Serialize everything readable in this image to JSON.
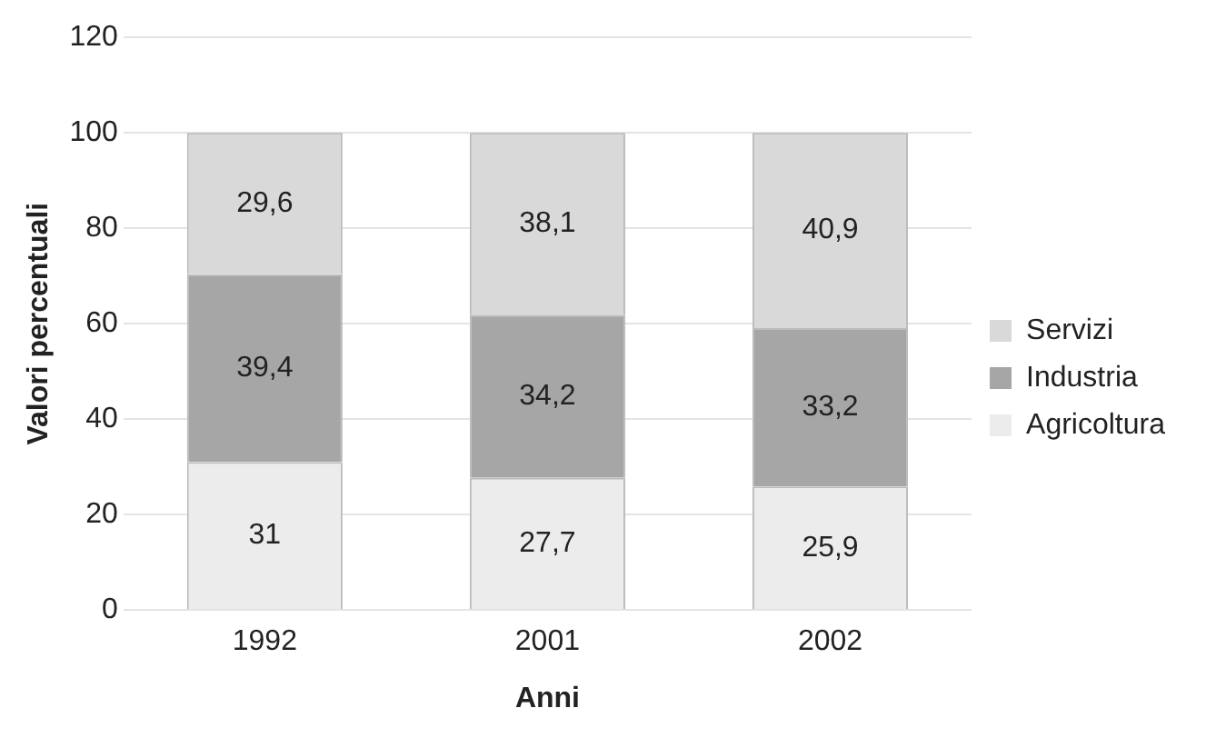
{
  "chart_data": {
    "type": "bar",
    "stacked": true,
    "xlabel": "Anni",
    "ylabel": "Valori percentuali",
    "categories": [
      "1992",
      "2001",
      "2002"
    ],
    "series": [
      {
        "name": "Agricoltura",
        "color": "#ececec",
        "values": [
          31,
          27.7,
          25.9
        ],
        "value_labels": [
          "31",
          "27,7",
          "25,9"
        ]
      },
      {
        "name": "Industria",
        "color": "#a6a6a6",
        "values": [
          39.4,
          34.2,
          33.2
        ],
        "value_labels": [
          "39,4",
          "34,2",
          "33,2"
        ]
      },
      {
        "name": "Servizi",
        "color": "#d9d9d9",
        "values": [
          29.6,
          38.1,
          40.9
        ],
        "value_labels": [
          "29,6",
          "38,1",
          "40,9"
        ]
      }
    ],
    "ylim": [
      0,
      120
    ],
    "yticks": [
      0,
      20,
      40,
      60,
      80,
      100,
      120
    ],
    "grid": "y",
    "legend": "right"
  }
}
